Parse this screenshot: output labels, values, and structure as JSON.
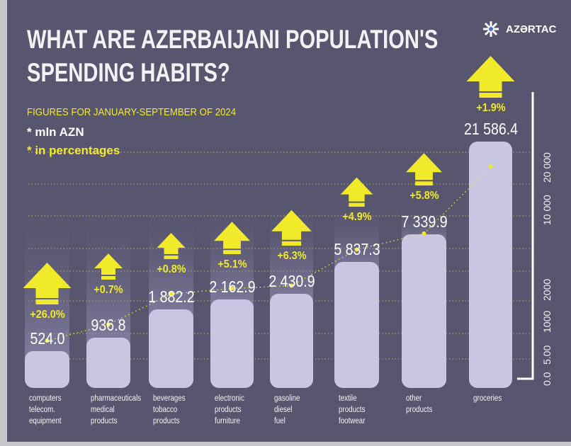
{
  "title_line1": "WHAT ARE AZERBAIJANI POPULATION'S",
  "title_line2": "SPENDING HABITS?",
  "subtitle": "FIGURES FOR JANUARY-SEPTEMBER OF 2024",
  "unit_value": "* mln AZN",
  "unit_percent": "* in percentages",
  "logo": "AZƏRTAC",
  "colors": {
    "background": "#58556f",
    "bar": "#c9c6e4",
    "accent": "#f0ea2a",
    "text": "#ffffff"
  },
  "chart_data": {
    "type": "bar",
    "categories": [
      [
        "computers",
        "telecom.",
        "equipment"
      ],
      [
        "pharmaceuticals",
        "medical",
        "products"
      ],
      [
        "beverages",
        "tobacco",
        "products"
      ],
      [
        "electronic",
        "products",
        "furniture"
      ],
      [
        "gasoline",
        "diesel",
        "fuel"
      ],
      [
        "textile",
        "products",
        "footwear"
      ],
      [
        "other",
        "products"
      ],
      [
        "groceries"
      ]
    ],
    "values": [
      524.0,
      936.8,
      1882.2,
      2162.9,
      2430.9,
      5837.3,
      7339.9,
      21586.4
    ],
    "value_labels": [
      "524.0",
      "936.8",
      "1 882.2",
      "2 162.9",
      "2 430.9",
      "5 837.3",
      "7 339.9",
      "21 586.4"
    ],
    "growth": [
      26.0,
      0.7,
      0.8,
      5.1,
      6.3,
      4.9,
      5.8,
      1.9
    ],
    "growth_labels": [
      "+26.0%",
      "+0.7%",
      "+0.8%",
      "+5.1%",
      "+6.3%",
      "+4.9%",
      "+5.8%",
      "+1.9%"
    ],
    "y_ticks": [
      "0.0",
      "5.00",
      "1000",
      "2000",
      "10 000",
      "20 000"
    ],
    "y_scale": "non-linear",
    "grid": true
  }
}
